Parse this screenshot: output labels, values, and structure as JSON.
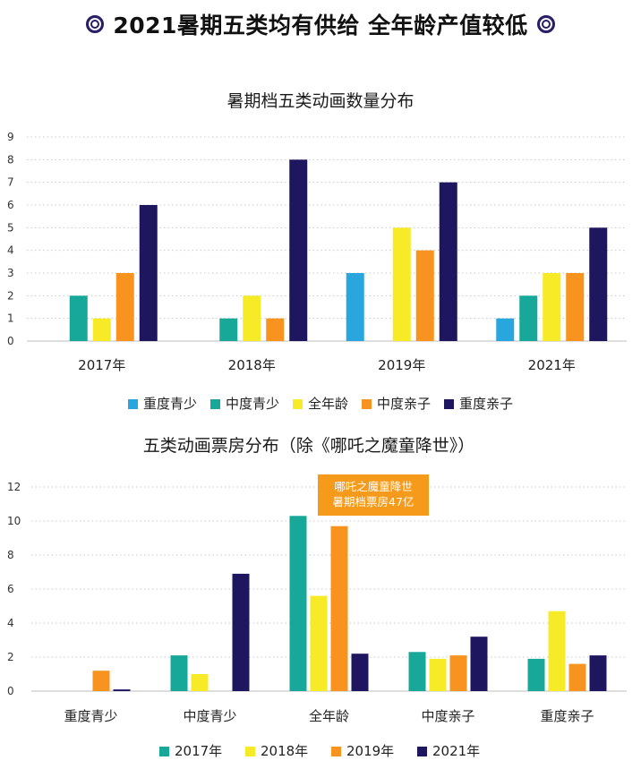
{
  "page_title": "2021暑期五类均有供给  全年龄产值较低",
  "colors": {
    "ring": "#2a1f66"
  },
  "chart_data": [
    {
      "type": "bar",
      "title": "暑期档五类动画数量分布",
      "categories": [
        "2017年",
        "2018年",
        "2019年",
        "2021年"
      ],
      "series": [
        {
          "name": "重度青少",
          "color": "#2aa6df",
          "values": [
            0,
            0,
            3,
            1
          ]
        },
        {
          "name": "中度青少",
          "color": "#17a899",
          "values": [
            2,
            1,
            0,
            2
          ]
        },
        {
          "name": "全年龄",
          "color": "#f7ea26",
          "values": [
            1,
            2,
            5,
            3
          ]
        },
        {
          "name": "中度亲子",
          "color": "#f7931e",
          "values": [
            3,
            1,
            4,
            3
          ]
        },
        {
          "name": "重度亲子",
          "color": "#1e1760",
          "values": [
            6,
            8,
            7,
            5
          ]
        }
      ],
      "yticks": [
        "0",
        "1",
        "2",
        "3",
        "4",
        "5",
        "6",
        "7",
        "8",
        "9"
      ],
      "ylim": [
        0,
        9
      ],
      "grid": true,
      "legend_position": "bottom"
    },
    {
      "type": "bar",
      "title": "五类动画票房分布（除《哪吒之魔童降世》）",
      "categories": [
        "重度青少",
        "中度青少",
        "全年龄",
        "中度亲子",
        "重度亲子"
      ],
      "series": [
        {
          "name": "2017年",
          "color": "#17a899",
          "values": [
            0,
            2.1,
            10.3,
            2.3,
            1.9
          ]
        },
        {
          "name": "2018年",
          "color": "#f7ea26",
          "values": [
            0,
            1.0,
            5.6,
            1.9,
            4.7
          ]
        },
        {
          "name": "2019年",
          "color": "#f7931e",
          "values": [
            1.2,
            0,
            9.7,
            2.1,
            1.6
          ]
        },
        {
          "name": "2021年",
          "color": "#1e1760",
          "values": [
            0.1,
            6.9,
            2.2,
            3.2,
            2.1
          ]
        }
      ],
      "yticks": [
        "0",
        "2",
        "4",
        "6",
        "8",
        "10",
        "12"
      ],
      "ylim": [
        0,
        12
      ],
      "grid": true,
      "legend_position": "bottom",
      "annotation": {
        "lines": [
          "哪吒之魔童降世",
          "暑期档票房47亿"
        ]
      }
    }
  ]
}
